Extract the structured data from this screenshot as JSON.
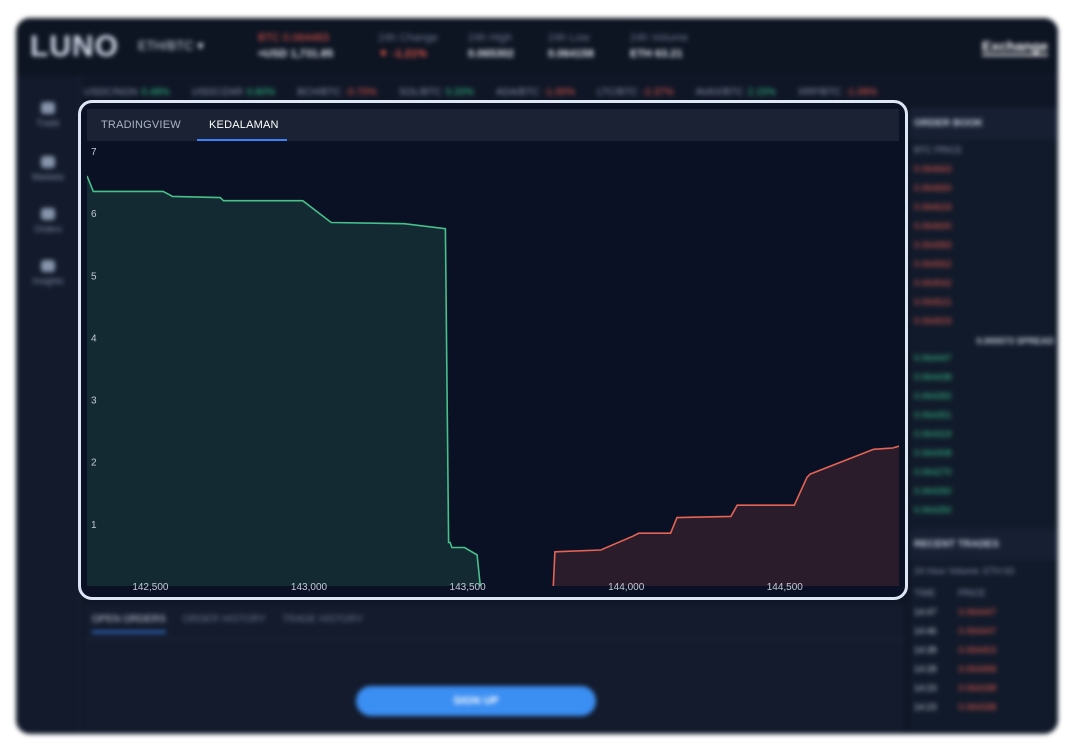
{
  "header": {
    "logo": "LUNO",
    "pair": "ETH/BTC ▾",
    "price_label": "BTC 0.064483",
    "price_value": "≈USD 1,731.85",
    "change_label": "24h Change",
    "change_value": "▼ -1.21%",
    "high_label": "24h High",
    "high_value": "0.065302",
    "low_label": "24h Low",
    "low_value": "0.064158",
    "volume_label": "24h Volume",
    "volume_value": "ETH 63.21",
    "exchange_label": "Exchange"
  },
  "ticker": [
    {
      "pair": "USDC/NGN",
      "change": "0.48%",
      "dir": "up"
    },
    {
      "pair": "USDC/ZAR",
      "change": "0.80%",
      "dir": "up"
    },
    {
      "pair": "BCH/BTC",
      "change": "-0.70%",
      "dir": "down"
    },
    {
      "pair": "SOL/BTC",
      "change": "0.20%",
      "dir": "up"
    },
    {
      "pair": "ADA/BTC",
      "change": "-1.00%",
      "dir": "down"
    },
    {
      "pair": "LTC/BTC",
      "change": "-2.37%",
      "dir": "down"
    },
    {
      "pair": "AVAX/BTC",
      "change": "2.15%",
      "dir": "up"
    },
    {
      "pair": "XRP/BTC",
      "change": "-1.09%",
      "dir": "down"
    }
  ],
  "sidebar": {
    "items": [
      {
        "label": "Trade"
      },
      {
        "label": "Markets"
      },
      {
        "label": "Orders"
      },
      {
        "label": "Insights"
      }
    ]
  },
  "orderbook": {
    "title": "ORDER BOOK",
    "col": "BTC PRICE",
    "asks": [
      "0.064663",
      "0.064650",
      "0.064633",
      "0.064600",
      "0.064583",
      "0.064562",
      "0.064542",
      "0.064521",
      "0.064503"
    ],
    "spread": "0.000073 SPREAD",
    "bids": [
      "0.064447",
      "0.064438",
      "0.064392",
      "0.064351",
      "0.064319",
      "0.064308",
      "0.064270",
      "0.064260",
      "0.064250"
    ],
    "recent_title": "RECENT TRADES",
    "recent_sub": "24 Hour Volume: ETH 63",
    "recent_cols": [
      "TIME",
      "PRICE"
    ],
    "recent": [
      {
        "time": "14:47",
        "price": "0.064447"
      },
      {
        "time": "14:46",
        "price": "0.064447"
      },
      {
        "time": "14:38",
        "price": "0.064403"
      },
      {
        "time": "14:28",
        "price": "0.064458"
      },
      {
        "time": "14:23",
        "price": "0.064338"
      },
      {
        "time": "14:23",
        "price": "0.064338"
      }
    ]
  },
  "bottom": {
    "tabs": [
      "OPEN ORDERS",
      "ORDER HISTORY",
      "TRADE HISTORY"
    ],
    "signup": "SIGN UP"
  },
  "chart_panel": {
    "tabs": [
      "TRADINGVIEW",
      "KEDALAMAN"
    ],
    "active_tab": "KEDALAMAN",
    "bid_color": "#47c08a",
    "ask_color": "#e46456"
  },
  "chart_data": {
    "type": "area",
    "title": "",
    "xlabel": "",
    "ylabel": "",
    "xlim": [
      142300,
      144860
    ],
    "ylim": [
      0,
      7
    ],
    "x_ticks": [
      142500,
      143000,
      143500,
      144000,
      144500
    ],
    "x_tick_labels": [
      "142,500",
      "143,000",
      "143,500",
      "144,000",
      "144,500"
    ],
    "y_ticks": [
      1,
      2,
      3,
      4,
      5,
      6,
      7
    ],
    "y_tick_labels": [
      "1",
      "2",
      "3",
      "4",
      "5",
      "6",
      "7"
    ],
    "series": [
      {
        "side": "bid",
        "x": [
          142300,
          142320,
          142540,
          142570,
          142720,
          142730,
          142980,
          143070,
          143300,
          143430,
          143440,
          143445,
          143450,
          143490,
          143530,
          143540
        ],
        "y": [
          6.6,
          6.35,
          6.35,
          6.27,
          6.25,
          6.2,
          6.2,
          5.85,
          5.83,
          5.75,
          0.7,
          0.7,
          0.62,
          0.62,
          0.5,
          0.0
        ]
      },
      {
        "side": "ask",
        "x": [
          143770,
          143775,
          143920,
          144020,
          144040,
          144140,
          144160,
          144330,
          144350,
          144530,
          144570,
          144580,
          144780,
          144840,
          144860
        ],
        "y": [
          0.0,
          0.55,
          0.58,
          0.8,
          0.85,
          0.85,
          1.1,
          1.12,
          1.3,
          1.3,
          1.75,
          1.8,
          2.2,
          2.22,
          2.25
        ]
      }
    ],
    "grid": false,
    "legend": "none"
  }
}
